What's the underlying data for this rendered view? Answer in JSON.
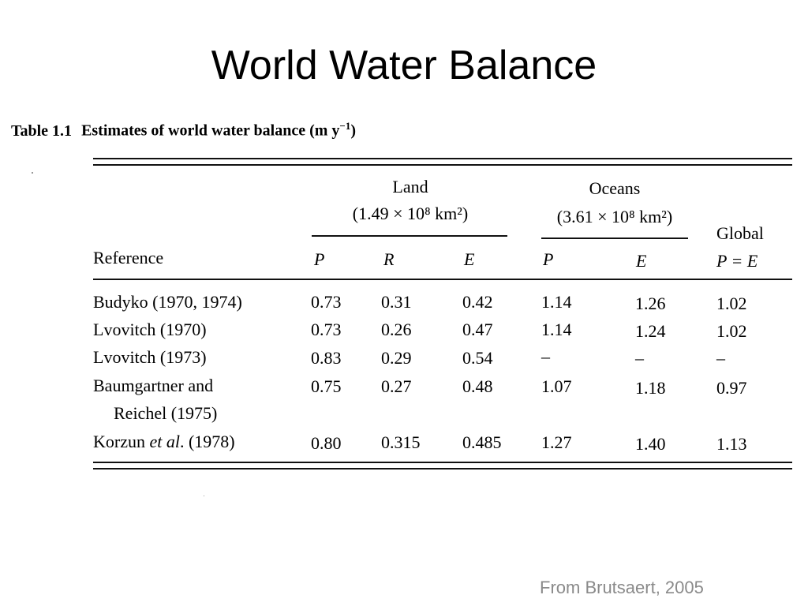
{
  "slide": {
    "title": "World Water Balance",
    "source": "From Brutsaert, 2005"
  },
  "table": {
    "number": "Table 1.1",
    "caption_main": "Estimates of world water balance (m y",
    "caption_sup": "−1",
    "caption_end": ")",
    "groups": {
      "land_title": "Land",
      "land_area": "(1.49 × 10⁸ km²)",
      "oceans_title": "Oceans",
      "oceans_area": "(3.61 × 10⁸ km²)",
      "global_title": "Global"
    },
    "headers": {
      "reference": "Reference",
      "land_p": "P",
      "land_r": "R",
      "land_e": "E",
      "ocean_p": "P",
      "ocean_e": "E",
      "global_pe": "P = E"
    },
    "rows": [
      {
        "ref": "Budyko (1970, 1974)",
        "lp": "0.73",
        "lr": "0.31",
        "le": "0.42",
        "op": "1.14",
        "oe": "1.26",
        "g": "1.02"
      },
      {
        "ref": "Lvovitch (1970)",
        "lp": "0.73",
        "lr": "0.26",
        "le": "0.47",
        "op": "1.14",
        "oe": "1.24",
        "g": "1.02"
      },
      {
        "ref": "Lvovitch (1973)",
        "lp": "0.83",
        "lr": "0.29",
        "le": "0.54",
        "op": "–",
        "oe": "–",
        "g": "–"
      },
      {
        "ref": "Baumgartner and",
        "ref2": "Reichel (1975)",
        "lp": "0.75",
        "lr": "0.27",
        "le": "0.48",
        "op": "1.07",
        "oe": "1.18",
        "g": "0.97"
      },
      {
        "ref_a": "Korzun ",
        "ref_b": "et al",
        "ref_c": ". (1978)",
        "lp": "0.80",
        "lr": "0.315",
        "le": "0.485",
        "op": "1.27",
        "oe": "1.40",
        "g": "1.13"
      }
    ]
  }
}
